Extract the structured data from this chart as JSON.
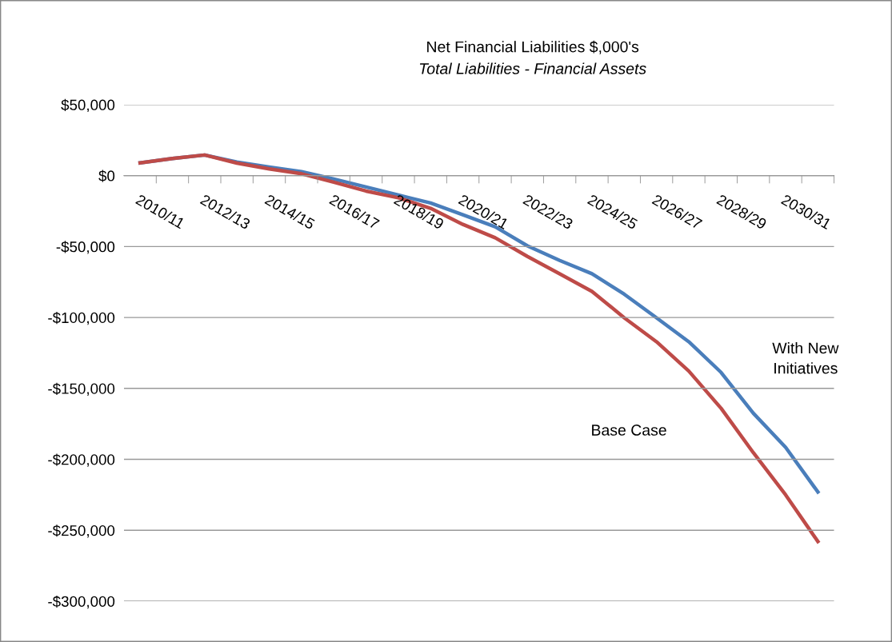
{
  "chart_data": {
    "type": "line",
    "title": "Net Financial Liabilities $,000's",
    "subtitle": "Total Liabilities - Financial Assets",
    "categories": [
      "2010/11",
      null,
      "2012/13",
      null,
      "2014/15",
      null,
      "2016/17",
      null,
      "2018/19",
      null,
      "2020/21",
      null,
      "2022/23",
      null,
      "2024/25",
      null,
      "2026/27",
      null,
      "2028/29",
      null,
      "2030/31",
      null
    ],
    "series": [
      {
        "color": "#4a7ebb",
        "values": [
          9000,
          12000,
          14500,
          9500,
          6000,
          2800,
          -2400,
          -8000,
          -13700,
          -19300,
          -27600,
          -36100,
          -49500,
          -59800,
          -69200,
          -83600,
          -100200,
          -117100,
          -138700,
          -167500,
          -191500,
          -223000
        ]
      },
      {
        "color": "#be4b48",
        "values": [
          9000,
          12000,
          14500,
          8800,
          4700,
          1300,
          -4700,
          -10900,
          -15600,
          -23100,
          -34400,
          -43800,
          -57000,
          -69200,
          -81600,
          -100200,
          -117100,
          -137800,
          -164000,
          -195300,
          -225000,
          -257900
        ]
      }
    ],
    "annotations": [
      "With New\nInitiatives",
      "Base Case"
    ],
    "ylim": [
      -300000,
      50000
    ],
    "yticks": [
      {
        "value": 50000,
        "label": "$50,000"
      },
      {
        "value": 0,
        "label": "$0"
      },
      {
        "value": -50000,
        "label": "-$50,000"
      },
      {
        "value": -100000,
        "label": "-$100,000"
      },
      {
        "value": -150000,
        "label": "-$150,000"
      },
      {
        "value": -200000,
        "label": "-$200,000"
      },
      {
        "value": -250000,
        "label": "-$250,000"
      },
      {
        "value": -300000,
        "label": "-$300,000"
      }
    ],
    "grid": "y",
    "legend": false,
    "marker": "none",
    "line_style": "solid"
  }
}
